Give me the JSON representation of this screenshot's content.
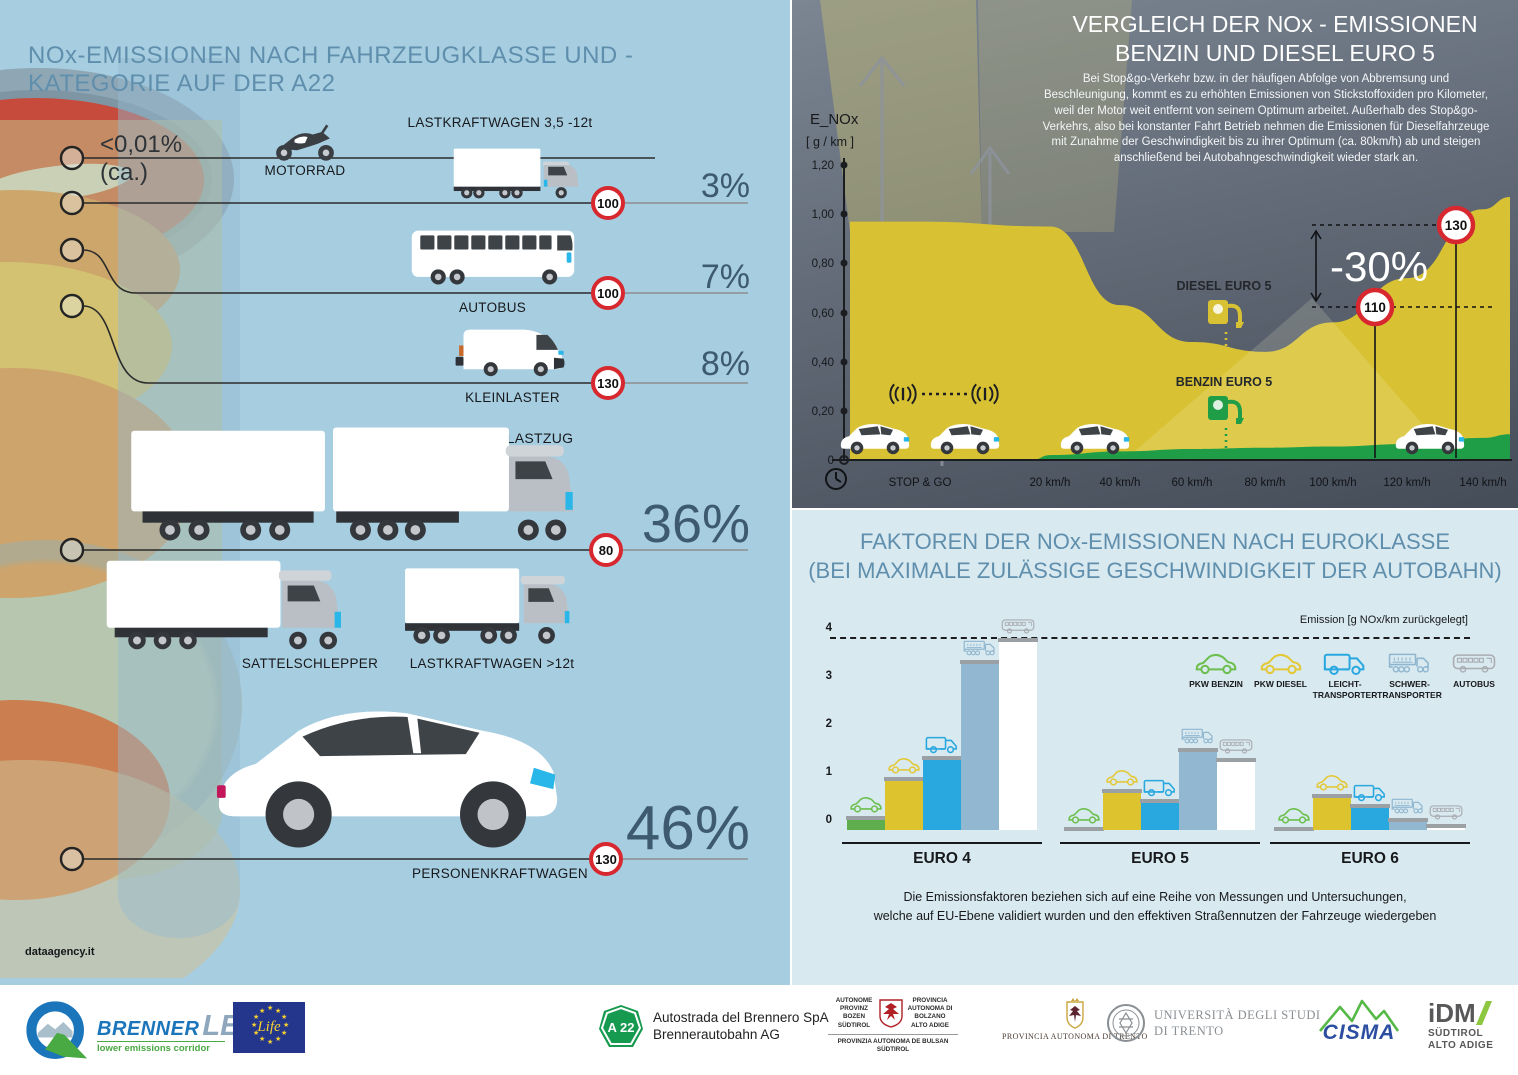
{
  "left_panel": {
    "credit": "dataagency.it"
  },
  "comparison_panel": {
    "description": "Bei Stop&go-Verkehr bzw. in der häufigen Abfolge von Abbremsung und Beschleunigung, kommt es zu erhöhten Emissionen von Stickstoffoxiden pro Kilometer, weil der Motor weit entfernt von seinem Optimum arbeitet. Außerhalb des Stop&go-Verkehrs, also bei konstanter Fahrt Betrieb nehmen die Emissionen für Dieselfahrzeuge mit Zunahme der Geschwindigkeit bis zu ihrer Optimum (ca. 80km/h) ab und steigen anschließend bei Autobahngeschwindigkeit wieder stark an."
  },
  "factors_panel": {
    "caption_line1": "Die Emissionsfaktoren beziehen sich auf eine Reihe von Messungen und Untersuchungen,",
    "caption_line2": "welche auf EU-Ebene validiert wurden und den effektiven Straßennutzen der Fahrzeuge wiedergeben"
  },
  "chart_data": [
    {
      "type": "funnel",
      "title": "NOx-EMISSIONEN NACH FAHRZEUGKLASSE UND - KATEGORIE AUF DER A22",
      "items": [
        {
          "label": "MOTORRAD",
          "share": "<0,01% (ca.)"
        },
        {
          "label": "LASTKRAFTWAGEN 3,5 -12t",
          "share": "3%",
          "tempolimit": "100"
        },
        {
          "label": "AUTOBUS",
          "share": "7%",
          "tempolimit": "100"
        },
        {
          "label": "KLEINLASTER",
          "share": "8%",
          "tempolimit": "130"
        },
        {
          "label": "LASTZUG",
          "share": "36%",
          "tempolimit": "80",
          "includes": [
            "SATTELSCHLEPPER",
            "LASTKRAFTWAGEN >12t"
          ]
        },
        {
          "label": "PERSONENKRAFTWAGEN",
          "share": "46%",
          "tempolimit": "130"
        }
      ]
    },
    {
      "type": "area",
      "title": "VERGLEICH DER NOx - EMISSIONEN BENZIN UND DIESEL EURO 5",
      "title_lines": [
        "VERGLEICH DER NOx - EMISSIONEN",
        "BENZIN UND DIESEL EURO 5"
      ],
      "ylabel": "E_NOx",
      "ylabel_unit": "[ g / km ]",
      "ylim": [
        0,
        1.2
      ],
      "yticks": [
        "1,20",
        "1,00",
        "0,80",
        "0,60",
        "0,40",
        "0,20",
        "0"
      ],
      "xlabel_ticks": [
        "STOP & GO",
        "20 km/h",
        "40 km/h",
        "60 km/h",
        "80 km/h",
        "100 km/h",
        "120 km/h",
        "140 km/h"
      ],
      "series": [
        {
          "name": "DIESEL EURO 5",
          "color": "#d8c233",
          "values": [
            0.97,
            0.95,
            0.63,
            0.48,
            0.44,
            0.56,
            0.74,
            1.02
          ]
        },
        {
          "name": "BENZIN EURO 5",
          "color": "#1f9e47",
          "values": [
            0.0,
            0.02,
            0.035,
            0.045,
            0.05,
            0.055,
            0.065,
            0.09
          ]
        }
      ],
      "annotations": [
        {
          "text": "-30%"
        },
        {
          "speed_sign": "110",
          "at_value": 0.63
        },
        {
          "speed_sign": "130",
          "at_value": 0.96
        }
      ]
    },
    {
      "type": "bar",
      "title": "FAKTOREN DER NOx-EMISSIONEN NACH EUROKLASSE (BEI MAXIMALE ZULÄSSIGE GESCHWINDIGKEIT DER AUTOBAHN)",
      "title_lines": [
        "FAKTOREN DER NOx-EMISSIONEN NACH EUROKLASSE",
        "(BEI MAXIMALE ZULÄSSIGE GESCHWINDIGKEIT DER AUTOBAHN)"
      ],
      "ylabel": "Emission [g NOx/km zurückgelegt]",
      "ylim": [
        0,
        4
      ],
      "yticks": [
        "4",
        "3",
        "2",
        "1",
        "0"
      ],
      "categories": [
        "EURO 4",
        "EURO 5",
        "EURO 6"
      ],
      "series": [
        {
          "name": "PKW BENZIN",
          "color": "#5fae4e",
          "icon_color": "#6cbf4d",
          "icon": "car",
          "values": [
            0.3,
            0.06,
            0.06
          ]
        },
        {
          "name": "PKW DIESEL",
          "color": "#ddc42e",
          "icon_color": "#e3c838",
          "icon": "car",
          "values": [
            1.1,
            0.85,
            0.75
          ]
        },
        {
          "name": "LEICHT-TRANSPORTER",
          "color": "#29a8e0",
          "icon_color": "#29a8e0",
          "icon": "van",
          "values": [
            1.55,
            0.65,
            0.55
          ]
        },
        {
          "name": "SCHWER-TRANSPORTER",
          "color": "#92b7d0",
          "icon_color": "#8fb6cf",
          "icon": "truck",
          "values": [
            3.55,
            1.7,
            0.25
          ]
        },
        {
          "name": "AUTOBUS",
          "color": "#ffffff",
          "icon_color": "#a9adb2",
          "icon": "bus",
          "values": [
            4.0,
            1.5,
            0.12
          ]
        }
      ]
    }
  ],
  "footer": {
    "brennerlec": {
      "name1": "BRENNER",
      "name2": "LEC",
      "tagline": "lower emissions corridor"
    },
    "life": {
      "label": "Life"
    },
    "a22": {
      "badge": "A 22",
      "line1": "Autostrada del Brennero SpA",
      "line2": "Brennerautobahn AG"
    },
    "bolzano": {
      "col1": "AUTONOME PROVINZ BOZEN SÜDTIROL",
      "col2": "PROVINCIA AUTONOMA DI BOLZANO ALTO ADIGE",
      "bottom": "PROVINZIA AUTONOMA DE BULSAN SÜDTIROL"
    },
    "trento": {
      "label": "PROVINCIA AUTONOMA DI TRENTO"
    },
    "unitn": {
      "line1": "UNIVERSITÀ DEGLI STUDI",
      "line2": "DI TRENTO"
    },
    "cisma": {
      "label": "CISMA"
    },
    "idm": {
      "name": "iDM",
      "line1": "SÜDTIROL",
      "line2": "ALTO ADIGE"
    }
  }
}
